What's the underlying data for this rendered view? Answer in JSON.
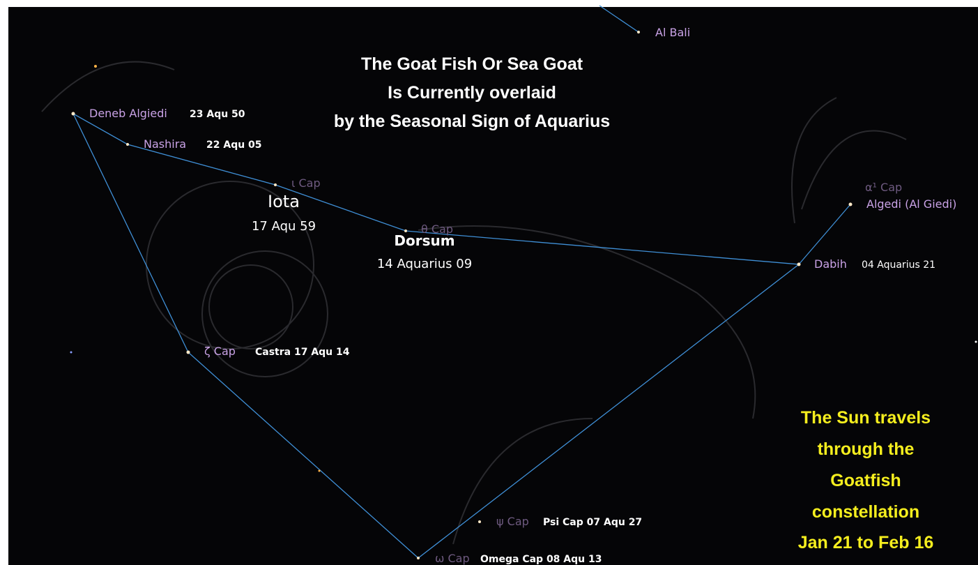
{
  "title": [
    "The Goat Fish Or Sea Goat",
    "Is Currently overlaid",
    "by the Seasonal Sign of Aquarius"
  ],
  "note": [
    "The Sun travels",
    "through the",
    "Goatfish",
    "constellation",
    "Jan 21 to Feb 16"
  ],
  "stars": [
    {
      "name": "Al Bali"
    },
    {
      "name": "Deneb Algiedi",
      "position": "23 Aqu 50"
    },
    {
      "name": "Nashira",
      "position": "22 Aqu 05"
    },
    {
      "name": "ι Cap",
      "label": "Iota",
      "position": "17 Aqu 59"
    },
    {
      "name": "θ Cap",
      "label": "Dorsum",
      "position": "14 Aquarius 09"
    },
    {
      "name": "α¹ Cap"
    },
    {
      "name": "Algedi (Al Giedi)"
    },
    {
      "name": "Dabih",
      "position": "04 Aquarius 21"
    },
    {
      "name": "ζ Cap",
      "position": "Castra 17 Aqu 14"
    },
    {
      "name": "ψ Cap",
      "position": "Psi Cap 07 Aqu 27"
    },
    {
      "name": "ω Cap",
      "position": "Omega Cap 08 Aqu 13"
    }
  ]
}
